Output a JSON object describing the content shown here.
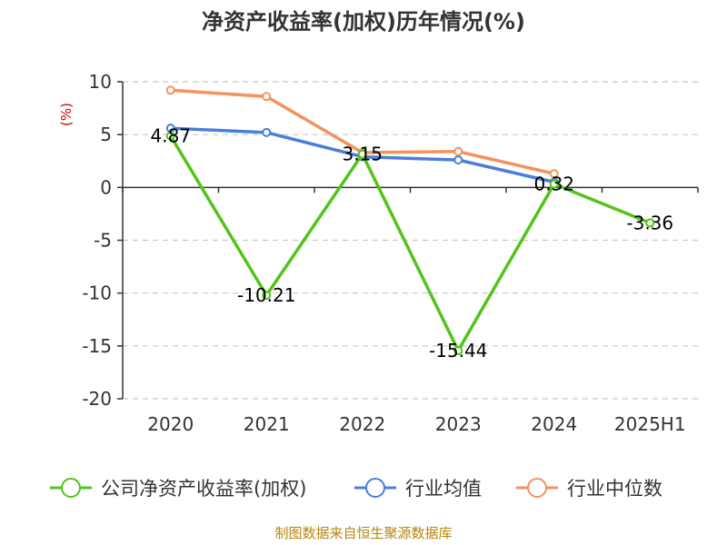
{
  "chart_data": {
    "type": "line",
    "title": "净资产收益率(加权)历年情况(%)",
    "ylabel": "(%)",
    "xlabel": "",
    "categories": [
      "2020",
      "2021",
      "2022",
      "2023",
      "2024",
      "2025H1"
    ],
    "ylim": [
      -20,
      10
    ],
    "yticks": [
      10,
      5,
      0,
      -5,
      -10,
      -15,
      -20
    ],
    "grid": true,
    "legend_position": "bottom",
    "series": [
      {
        "name": "公司净资产收益率(加权)",
        "color": "#52c41a",
        "values": [
          4.87,
          -10.21,
          3.15,
          -15.44,
          0.32,
          -3.36
        ],
        "labels": [
          "4.87",
          "-10.21",
          "3.15",
          "-15.44",
          "0.32",
          "-3.36"
        ]
      },
      {
        "name": "行业均值",
        "color": "#4a7fd8",
        "values": [
          5.6,
          5.2,
          2.9,
          2.6,
          0.5,
          null
        ]
      },
      {
        "name": "行业中位数",
        "color": "#f4925c",
        "values": [
          9.2,
          8.6,
          3.3,
          3.4,
          1.3,
          null
        ]
      }
    ]
  },
  "footer": {
    "source": "制图数据来自恒生聚源数据库"
  }
}
